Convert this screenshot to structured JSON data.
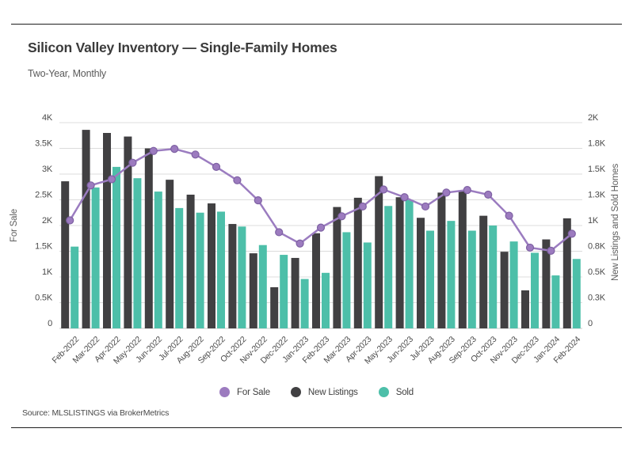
{
  "header": {
    "title": "Silicon Valley Inventory — Single-Family Homes",
    "subtitle": "Two-Year, Monthly"
  },
  "footer": {
    "source": "Source:  MLSLISTINGS via BrokerMetrics"
  },
  "legend": [
    {
      "label": "For Sale",
      "color": "#9c7bbf"
    },
    {
      "label": "New Listings",
      "color": "#414042"
    },
    {
      "label": "Sold",
      "color": "#4dbfa9"
    }
  ],
  "chart_data": {
    "type": "bar",
    "subtype": "grouped-bars-with-line-overlay",
    "title": "Silicon Valley Inventory — Single-Family Homes",
    "subtitle": "Two-Year, Monthly",
    "grid": true,
    "legend_position": "bottom",
    "categories": [
      "Feb-2022",
      "Mar-2022",
      "Apr-2022",
      "May-2022",
      "Jun-2022",
      "Jul-2022",
      "Aug-2022",
      "Sep-2022",
      "Oct-2022",
      "Nov-2022",
      "Dec-2022",
      "Jan-2023",
      "Feb-2023",
      "Mar-2023",
      "Apr-2023",
      "May-2023",
      "Jun-2023",
      "Jul-2023",
      "Aug-2023",
      "Sep-2023",
      "Oct-2023",
      "Nov-2023",
      "Dec-2023",
      "Jan-2024",
      "Feb-2024"
    ],
    "left_axis": {
      "title": "For Sale",
      "min": 0,
      "max": 4000,
      "ticks_top_to_bottom": [
        "4K",
        "3.5K",
        "3K",
        "2.5K",
        "2K",
        "1.5K",
        "1K",
        "0.5K",
        "0"
      ]
    },
    "right_axis": {
      "title": "New Listings and Sold Homes",
      "min": 0,
      "max": 2000,
      "ticks_top_to_bottom": [
        "2K",
        "1.8K",
        "1.5K",
        "1.3K",
        "1K",
        "0.8K",
        "0.5K",
        "0.3K",
        "0"
      ]
    },
    "series": [
      {
        "name": "New Listings",
        "type": "bar",
        "axis": "right",
        "color": "#414042",
        "values": [
          1430,
          1930,
          1900,
          1865,
          1750,
          1445,
          1300,
          1215,
          1015,
          730,
          400,
          685,
          925,
          1180,
          1270,
          1480,
          1275,
          1075,
          1320,
          1340,
          1095,
          745,
          370,
          865,
          1070
        ]
      },
      {
        "name": "Sold",
        "type": "bar",
        "axis": "right",
        "color": "#4dbfa9",
        "values": [
          795,
          1370,
          1570,
          1460,
          1330,
          1170,
          1125,
          1135,
          990,
          810,
          715,
          480,
          540,
          935,
          835,
          1190,
          1250,
          950,
          1045,
          950,
          1000,
          845,
          735,
          515,
          675
        ]
      },
      {
        "name": "For Sale",
        "type": "line",
        "axis": "left",
        "color": "#9b7cc0",
        "point_fill": "#9c7bbf",
        "point_stroke": "#7e61a3",
        "values": [
          2100,
          2780,
          2900,
          3220,
          3450,
          3490,
          3380,
          3140,
          2880,
          2490,
          1870,
          1650,
          1960,
          2180,
          2370,
          2700,
          2550,
          2370,
          2640,
          2690,
          2600,
          2190,
          1570,
          1510,
          1840
        ]
      }
    ],
    "gridline_color": "#dcdcdc",
    "baseline_color": "#c9c9c9"
  }
}
